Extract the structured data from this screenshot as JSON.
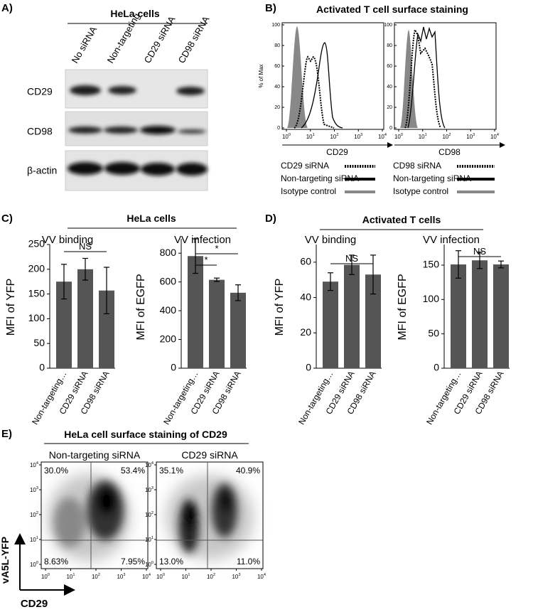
{
  "panel_a": {
    "label": "A)",
    "title": "HeLa cells",
    "lanes": [
      "No siRNA",
      "Non-targeting",
      "CD29 siRNA",
      "CD98 siRNA"
    ],
    "rows": [
      "CD29",
      "CD98",
      "β-actin"
    ]
  },
  "panel_b": {
    "label": "B)",
    "title": "Activated T cell surface staining",
    "y_label": "% of Max",
    "ylim": [
      0,
      100
    ],
    "yticks": [
      0,
      20,
      40,
      60,
      80,
      100
    ],
    "log_tick_base": "10",
    "log_tick_exponents": [
      "0",
      "1",
      "2",
      "3",
      "4"
    ],
    "plots": [
      {
        "x_label": "CD29",
        "legend": [
          "CD29 siRNA",
          "Non-targeting siRNA",
          "Isotype control"
        ]
      },
      {
        "x_label": "CD98",
        "legend": [
          "CD98 siRNA",
          "Non-targeting siRNA",
          "Isotype control"
        ]
      }
    ]
  },
  "panel_c": {
    "label": "C)",
    "title": "HeLa cells"
  },
  "panel_d": {
    "label": "D)",
    "title": "Activated T cells"
  },
  "chart_data": [
    {
      "type": "bar",
      "title": "VV binding",
      "y_label": "MFI of YFP",
      "categories": [
        "Non-targeting…",
        "CD29 siRNA",
        "CD98 siRNA"
      ],
      "values": [
        175,
        200,
        157
      ],
      "errors": [
        35,
        22,
        47
      ],
      "ylim": [
        0,
        250
      ],
      "yticks": [
        0,
        50,
        100,
        150,
        200,
        250
      ],
      "color": "#555555",
      "annotations": [
        "NS"
      ]
    },
    {
      "type": "bar",
      "title": "VV infection",
      "y_label": "MFI of EGFP",
      "categories": [
        "Non-targeting…",
        "CD29 siRNA",
        "CD98 siRNA"
      ],
      "values": [
        780,
        615,
        525
      ],
      "errors": [
        120,
        12,
        55
      ],
      "ylim": [
        0,
        900
      ],
      "yticks": [
        0,
        200,
        400,
        600,
        800
      ],
      "color": "#555555",
      "annotations": [
        "*",
        "*"
      ]
    },
    {
      "type": "bar",
      "title": "VV binding",
      "y_label": "MFI of YFP",
      "categories": [
        "Non-targeting…",
        "CD29 siRNA",
        "CD98 siRNA"
      ],
      "values": [
        49,
        58.5,
        53
      ],
      "errors": [
        5,
        5.5,
        11
      ],
      "ylim": [
        0,
        70
      ],
      "yticks": [
        0,
        20,
        40,
        60
      ],
      "color": "#555555",
      "annotations": [
        "NS"
      ]
    },
    {
      "type": "bar",
      "title": "VV infection",
      "y_label": "MFI of EGFP",
      "categories": [
        "Non-targeting…",
        "CD29 siRNA",
        "CD98 siRNA"
      ],
      "values": [
        151,
        157,
        151
      ],
      "errors": [
        20,
        12,
        5
      ],
      "ylim": [
        0,
        180
      ],
      "yticks": [
        0,
        50,
        100,
        150
      ],
      "color": "#555555",
      "annotations": [
        "NS"
      ]
    }
  ],
  "panel_e": {
    "label": "E)",
    "title": "HeLa cell surface staining of CD29",
    "y_label": "vA5L-YFP",
    "x_label": "CD29",
    "log_tick_base": "10",
    "log_tick_exponents": [
      "0",
      "1",
      "2",
      "3",
      "4"
    ],
    "plots": [
      {
        "title": "Non-targeting siRNA",
        "quadrants": [
          "30.0%",
          "53.4%",
          "8.63%",
          "7.95%"
        ]
      },
      {
        "title": "CD29 siRNA",
        "quadrants": [
          "35.1%",
          "40.9%",
          "13.0%",
          "11.0%"
        ]
      }
    ]
  }
}
